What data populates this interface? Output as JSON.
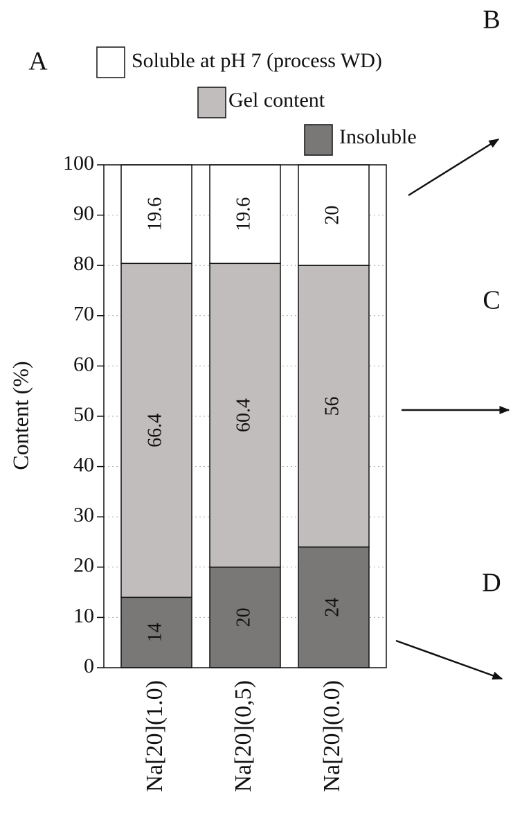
{
  "chart_data": {
    "type": "stacked_bar",
    "panel_labels": [
      "A",
      "B",
      "C",
      "D"
    ],
    "y_label": "Content (%)",
    "categories": [
      "Na[20](1.0)",
      "Na[20](0,5)",
      "Na[20](0.0)"
    ],
    "series": [
      {
        "name": "Insoluble",
        "color": "#7a7876",
        "values": [
          14,
          20,
          24
        ]
      },
      {
        "name": "Gel content",
        "color": "#c1bdbc",
        "values": [
          66.4,
          60.4,
          56
        ]
      },
      {
        "name": "Soluble at pH 7 (process WD)",
        "color": "#ffffff",
        "values": [
          19.6,
          19.6,
          20
        ]
      }
    ],
    "ylim": [
      0,
      100
    ],
    "yticks": [
      0,
      10,
      20,
      30,
      40,
      50,
      60,
      70,
      80,
      90,
      100
    ],
    "grid": true
  }
}
